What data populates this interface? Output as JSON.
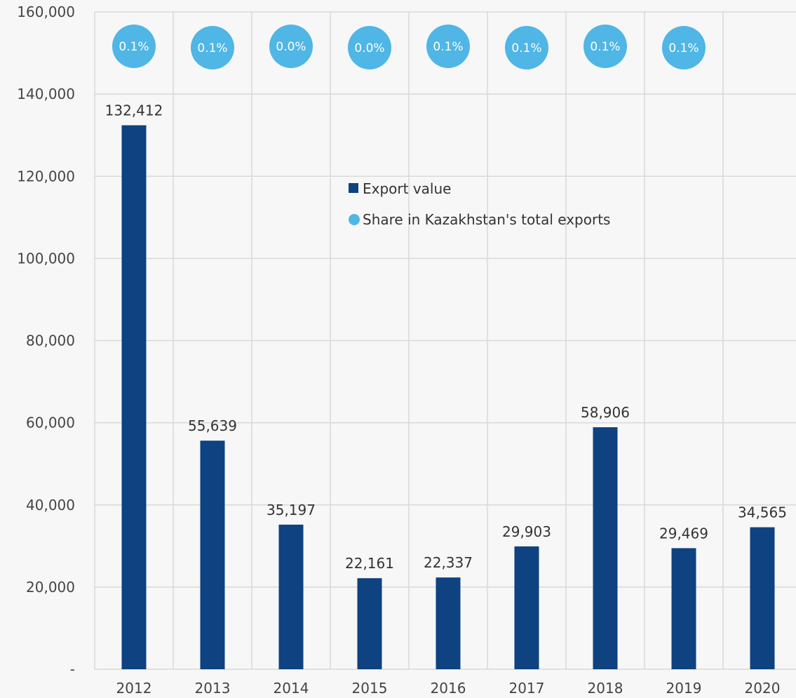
{
  "chart_data": {
    "type": "bar",
    "categories": [
      "2012",
      "2013",
      "2014",
      "2015",
      "2016",
      "2017",
      "2018",
      "2019",
      "2020"
    ],
    "series": [
      {
        "name": "Export value",
        "values": [
          132412,
          55639,
          35197,
          22161,
          22337,
          29903,
          58906,
          29469,
          34565
        ],
        "labels": [
          "132,412",
          "55,639",
          "35,197",
          "22,161",
          "22,337",
          "29,903",
          "58,906",
          "29,469",
          "34,565"
        ],
        "color": "#0e4280"
      },
      {
        "name": "Share in Kazakhstan's total exports",
        "labels": [
          "0.1%",
          "0.1%",
          "0.0%",
          "0.0%",
          "0.1%",
          "0.1%",
          "0.1%",
          "0.1%",
          null
        ],
        "color": "#4fb6e6"
      }
    ],
    "y_ticks": [
      "-",
      "20,000",
      "40,000",
      "60,000",
      "80,000",
      "100,000",
      "120,000",
      "140,000",
      "160,000"
    ],
    "ylim": [
      0,
      160000
    ],
    "grid": true,
    "legend_position": "center-top"
  }
}
